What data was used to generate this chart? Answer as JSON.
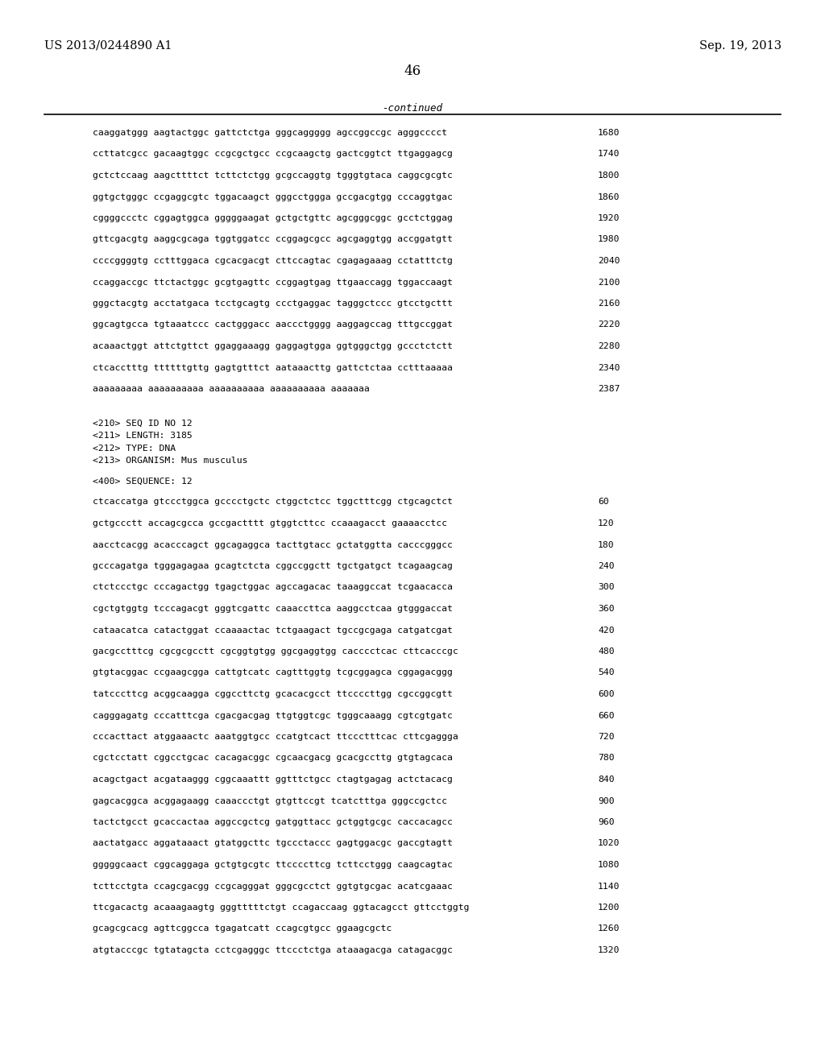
{
  "bg_color": "#ffffff",
  "header_left": "US 2013/0244890 A1",
  "header_right": "Sep. 19, 2013",
  "page_number": "46",
  "continued_label": "-continued",
  "top_sequences": [
    [
      "caaggatggg aagtactggc gattctctga gggcaggggg agccggccgc agggcccct",
      "1680"
    ],
    [
      "ccttatcgcc gacaagtggc ccgcgctgcc ccgcaagctg gactcggtct ttgaggagcg",
      "1740"
    ],
    [
      "gctctccaag aagcttttct tcttctctgg gcgccaggtg tgggtgtaca caggcgcgtc",
      "1800"
    ],
    [
      "ggtgctgggc ccgaggcgtc tggacaagct gggcctggga gccgacgtgg cccaggtgac",
      "1860"
    ],
    [
      "cggggccctc cggagtggca gggggaagat gctgctgttc agcgggcggc gcctctggag",
      "1920"
    ],
    [
      "gttcgacgtg aaggcgcaga tggtggatcc ccggagcgcc agcgaggtgg accggatgtt",
      "1980"
    ],
    [
      "ccccggggtg cctttggaca cgcacgacgt cttccagtac cgagagaaag cctatttctg",
      "2040"
    ],
    [
      "ccaggaccgc ttctactggc gcgtgagttc ccggagtgag ttgaaccagg tggaccaagt",
      "2100"
    ],
    [
      "gggctacgtg acctatgaca tcctgcagtg ccctgaggac tagggctccc gtcctgcttt",
      "2160"
    ],
    [
      "ggcagtgcca tgtaaatccc cactgggacc aaccctgggg aaggagccag tttgccggat",
      "2220"
    ],
    [
      "acaaactggt attctgttct ggaggaaagg gaggagtgga ggtgggctgg gccctctctt",
      "2280"
    ],
    [
      "ctcacctttg ttttttgttg gagtgtttct aataaacttg gattctctaa cctttaaaaa",
      "2340"
    ],
    [
      "aaaaaaaaa aaaaaaaaaa aaaaaaaaaa aaaaaaaaaa aaaaaaa",
      "2387"
    ]
  ],
  "metadata": [
    "<210> SEQ ID NO 12",
    "<211> LENGTH: 3185",
    "<212> TYPE: DNA",
    "<213> ORGANISM: Mus musculus"
  ],
  "seq_label": "<400> SEQUENCE: 12",
  "bottom_sequences": [
    [
      "ctcaccatga gtccctggca gcccctgctc ctggctctcc tggctttcgg ctgcagctct",
      "60"
    ],
    [
      "gctgccctt accagcgcca gccgactttt gtggtcttcc ccaaagacct gaaaacctcc",
      "120"
    ],
    [
      "aacctcacgg acacccagct ggcagaggca tacttgtacc gctatggtta cacccgggcc",
      "180"
    ],
    [
      "gcccagatga tgggagagaa gcagtctcta cggccggctt tgctgatgct tcagaagcag",
      "240"
    ],
    [
      "ctctccctgc cccagactgg tgagctggac agccagacac taaaggccat tcgaacacca",
      "300"
    ],
    [
      "cgctgtggtg tcccagacgt gggtcgattc caaaccttca aaggcctcaa gtgggaccat",
      "360"
    ],
    [
      "cataacatca catactggat ccaaaactac tctgaagact tgccgcgaga catgatcgat",
      "420"
    ],
    [
      "gacgcctttcg cgcgcgcctt cgcggtgtgg ggcgaggtgg cacccctcac cttcacccgc",
      "480"
    ],
    [
      "gtgtacggac ccgaagcgga cattgtcatc cagtttggtg tcgcggagca cggagacggg",
      "540"
    ],
    [
      "tatcccttcg acggcaagga cggccttctg gcacacgcct ttccccttgg cgccggcgtt",
      "600"
    ],
    [
      "cagggagatg cccatttcga cgacgacgag ttgtggtcgc tgggcaaagg cgtcgtgatc",
      "660"
    ],
    [
      "cccacttact atggaaactc aaatggtgcc ccatgtcact ttccctttcac cttcgaggga",
      "720"
    ],
    [
      "cgctcctatt cggcctgcac cacagacggc cgcaacgacg gcacgccttg gtgtagcaca",
      "780"
    ],
    [
      "acagctgact acgataaggg cggcaaattt ggtttctgcc ctagtgagag actctacacg",
      "840"
    ],
    [
      "gagcacggca acggagaagg caaaccctgt gtgttccgt tcatctttga gggccgctcc",
      "900"
    ],
    [
      "tactctgcct gcaccactaa aggccgctcg gatggttacc gctggtgcgc caccacagcc",
      "960"
    ],
    [
      "aactatgacc aggataaact gtatggcttc tgccctaccc gagtggacgc gaccgtagtt",
      "1020"
    ],
    [
      "gggggcaact cggcaggaga gctgtgcgtc ttccccttcg tcttcctggg caagcagtac",
      "1080"
    ],
    [
      "tcttcctgta ccagcgacgg ccgcagggat gggcgcctct ggtgtgcgac acatcgaaac",
      "1140"
    ],
    [
      "ttcgacactg acaaagaagtg gggtttttctgt ccagaccaag ggtacagcct gttcctggtg",
      "1200"
    ],
    [
      "gcagcgcacg agttcggcca tgagatcatt ccagcgtgcc ggaagcgctc",
      "1260"
    ],
    [
      "atgtacccgc tgtatagcta cctcgagggc ttccctctga ataaagacga catagacggc",
      "1320"
    ]
  ]
}
